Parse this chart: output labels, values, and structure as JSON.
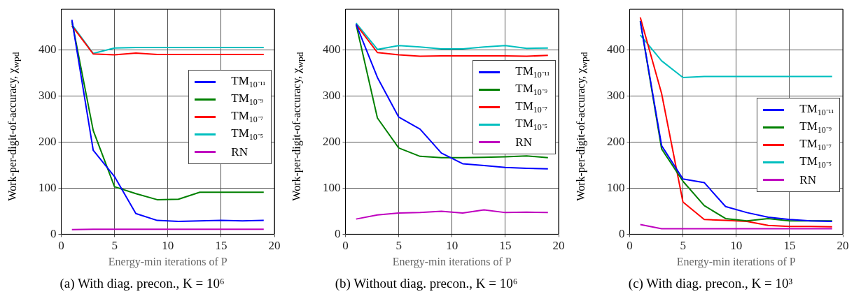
{
  "chart_data": [
    {
      "type": "line",
      "title": "(a) With diag. precon., K = 10⁶",
      "xlabel": "Energy-min iterations of P",
      "ylabel": "Work-per-digit-of-accuracy, χ$_{wpd}$",
      "x": [
        1,
        3,
        5,
        7,
        9,
        11,
        13,
        15,
        17,
        19
      ],
      "xlim": [
        0,
        20
      ],
      "xticks": [
        0,
        5,
        10,
        15,
        20
      ],
      "ylim": [
        0,
        488
      ],
      "yticks": [
        0,
        100,
        200,
        300,
        400
      ],
      "grid": true,
      "legend": "right",
      "series": [
        {
          "name": "TM$_{10⁻¹¹}$",
          "color": "#0000ff",
          "values": [
            465,
            182,
            125,
            45,
            30,
            28,
            29,
            30,
            29,
            30
          ]
        },
        {
          "name": "TM$_{10⁻⁹}$",
          "color": "#008000",
          "values": [
            462,
            225,
            103,
            88,
            75,
            76,
            91,
            91,
            91,
            91
          ]
        },
        {
          "name": "TM$_{10⁻⁷}$",
          "color": "#ff0000",
          "values": [
            452,
            391,
            389,
            393,
            390,
            390,
            390,
            390,
            390,
            390
          ]
        },
        {
          "name": "TM$_{10⁻⁵}$",
          "color": "#00bfbf",
          "values": [
            455,
            392,
            404,
            405,
            405,
            405,
            405,
            405,
            405,
            405
          ]
        },
        {
          "name": "RN",
          "color": "#bf00bf",
          "values": [
            10,
            11,
            11,
            11,
            11,
            11,
            11,
            11,
            11,
            11
          ]
        }
      ]
    },
    {
      "type": "line",
      "title": "(b) Without diag. precon., K = 10⁶",
      "xlabel": "Energy-min iterations of P",
      "ylabel": "Work-per-digit-of-accuracy, χ$_{wpd}$",
      "x": [
        1,
        3,
        5,
        7,
        9,
        11,
        13,
        15,
        17,
        19
      ],
      "xlim": [
        0,
        20
      ],
      "xticks": [
        0,
        5,
        10,
        15,
        20
      ],
      "ylim": [
        0,
        488
      ],
      "yticks": [
        0,
        100,
        200,
        300,
        400
      ],
      "grid": true,
      "legend": "right",
      "series": [
        {
          "name": "TM$_{10⁻¹¹}$",
          "color": "#0000ff",
          "values": [
            455,
            340,
            254,
            228,
            176,
            153,
            149,
            145,
            143,
            142
          ]
        },
        {
          "name": "TM$_{10⁻⁹}$",
          "color": "#008000",
          "values": [
            455,
            252,
            187,
            169,
            166,
            166,
            167,
            168,
            170,
            166
          ]
        },
        {
          "name": "TM$_{10⁻⁷}$",
          "color": "#ff0000",
          "values": [
            455,
            394,
            389,
            386,
            387,
            387,
            387,
            387,
            386,
            388
          ]
        },
        {
          "name": "TM$_{10⁻⁵}$",
          "color": "#00bfbf",
          "values": [
            458,
            401,
            409,
            406,
            402,
            402,
            406,
            409,
            403,
            404
          ]
        },
        {
          "name": "RN",
          "color": "#bf00bf",
          "values": [
            33,
            42,
            46,
            47,
            50,
            46,
            53,
            47,
            48,
            47
          ]
        }
      ]
    },
    {
      "type": "line",
      "title": "(c) With diag. precon., K = 10³",
      "xlabel": "Energy-min iterations of P",
      "ylabel": "Work-per-digit-of-accuracy, χ$_{wpd}$",
      "x": [
        1,
        3,
        5,
        7,
        9,
        11,
        13,
        15,
        17,
        19
      ],
      "xlim": [
        0,
        20
      ],
      "xticks": [
        0,
        5,
        10,
        15,
        20
      ],
      "ylim": [
        0,
        488
      ],
      "yticks": [
        0,
        100,
        200,
        300,
        400
      ],
      "grid": true,
      "legend": "right",
      "series": [
        {
          "name": "TM$_{10⁻¹¹}$",
          "color": "#0000ff",
          "values": [
            462,
            192,
            120,
            112,
            60,
            47,
            37,
            32,
            29,
            28
          ]
        },
        {
          "name": "TM$_{10⁻⁹}$",
          "color": "#008000",
          "values": [
            462,
            185,
            115,
            62,
            34,
            29,
            34,
            29,
            29,
            29
          ]
        },
        {
          "name": "TM$_{10⁻⁷}$",
          "color": "#ff0000",
          "values": [
            470,
            305,
            70,
            32,
            30,
            28,
            19,
            17,
            17,
            16
          ]
        },
        {
          "name": "TM$_{10⁻⁵}$",
          "color": "#00bfbf",
          "values": [
            432,
            376,
            340,
            342,
            342,
            342,
            342,
            342,
            342,
            342
          ]
        },
        {
          "name": "RN",
          "color": "#bf00bf",
          "values": [
            21,
            12,
            12,
            12,
            12,
            12,
            12,
            12,
            12,
            12
          ]
        }
      ]
    }
  ]
}
